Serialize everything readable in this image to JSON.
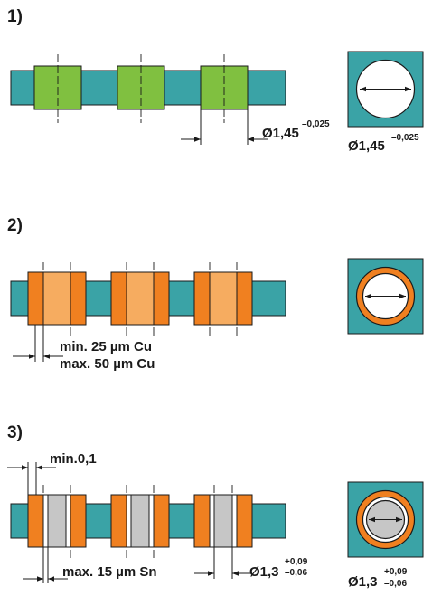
{
  "colors": {
    "teal": "#3aa3a6",
    "green": "#80c040",
    "orange_dark": "#f08020",
    "orange_light": "#f6ac60",
    "grey": "#c6c6c6",
    "line": "#1a1a1a"
  },
  "step1": {
    "number": "1)",
    "dim_main": "Ø1,45",
    "dim_tol": "–0,025",
    "square_dim_main": "Ø1,45",
    "square_dim_tol": "–0,025"
  },
  "step2": {
    "number": "2)",
    "label_min": "min. 25 µm Cu",
    "label_max": "max. 50 µm Cu"
  },
  "step3": {
    "number": "3)",
    "label_min_gap": "min.0,1",
    "label_sn": "max. 15 µm Sn",
    "dim_main": "Ø1,3",
    "dim_tol_upper": "+0,09",
    "dim_tol_lower": "–0,06",
    "square_dim_main": "Ø1,3",
    "square_dim_tol_upper": "+0,09",
    "square_dim_tol_lower": "–0,06"
  }
}
